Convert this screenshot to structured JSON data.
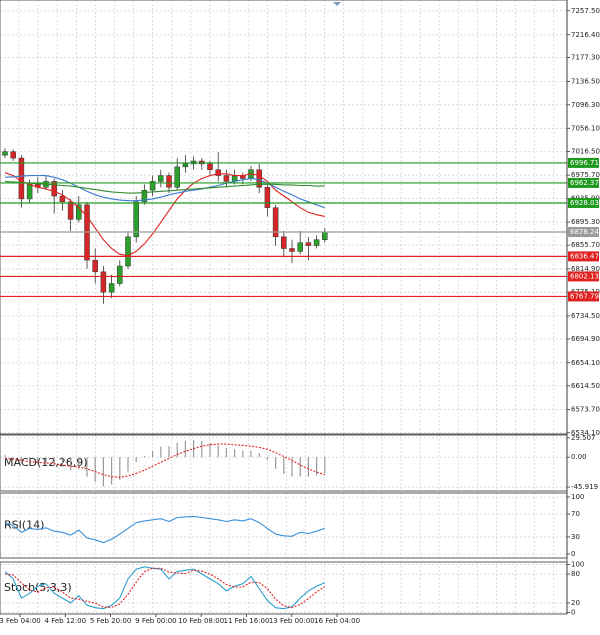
{
  "chart_data": [
    {
      "type": "candlestick",
      "open": [
        7010,
        7016,
        7005,
        6935,
        6960,
        6955,
        6965,
        6940,
        6930,
        6900,
        6925,
        6830,
        6810,
        6775,
        6790,
        6820,
        6870,
        6930,
        6950,
        6965,
        6975,
        6955,
        6990,
        6995,
        7000,
        6995,
        6985,
        6975,
        6965,
        6975,
        6970,
        6985,
        6955,
        6920,
        6870,
        6850,
        6845,
        6860,
        6855,
        6865
      ],
      "high": [
        7022,
        7020,
        7010,
        6968,
        6972,
        6975,
        6970,
        6950,
        6935,
        6940,
        6930,
        6850,
        6820,
        6805,
        6830,
        6880,
        6940,
        6960,
        6975,
        6985,
        6980,
        7005,
        7010,
        7008,
        7005,
        7000,
        7015,
        6985,
        6985,
        6980,
        6992,
        6995,
        6960,
        6925,
        6880,
        6865,
        6880,
        6870,
        6872,
        6885
      ],
      "low": [
        7005,
        7000,
        6920,
        6928,
        6945,
        6950,
        6910,
        6915,
        6880,
        6895,
        6815,
        6790,
        6755,
        6765,
        6785,
        6815,
        6860,
        6925,
        6940,
        6955,
        6945,
        6950,
        6980,
        6985,
        6985,
        6975,
        6965,
        6955,
        6960,
        6960,
        6965,
        6945,
        6905,
        6855,
        6835,
        6825,
        6840,
        6830,
        6850,
        6860
      ],
      "close": [
        7016,
        7005,
        6935,
        6960,
        6955,
        6965,
        6940,
        6930,
        6900,
        6925,
        6830,
        6810,
        6775,
        6790,
        6820,
        6870,
        6930,
        6950,
        6965,
        6975,
        6955,
        6990,
        6995,
        7000,
        6995,
        6985,
        6975,
        6965,
        6975,
        6970,
        6985,
        6955,
        6920,
        6870,
        6850,
        6845,
        6860,
        6855,
        6865,
        6878
      ],
      "up_color": "#2ca02c",
      "down_color": "#d62728",
      "lines": [
        {
          "color": "#e02020",
          "values": [
            6980,
            6975,
            6965,
            6960,
            6955,
            6952,
            6948,
            6942,
            6932,
            6920,
            6905,
            6885,
            6865,
            6850,
            6840,
            6838,
            6845,
            6858,
            6875,
            6895,
            6915,
            6935,
            6950,
            6962,
            6970,
            6975,
            6978,
            6978,
            6975,
            6975,
            6978,
            6975,
            6965,
            6950,
            6940,
            6930,
            6920,
            6912,
            6908,
            6905
          ]
        },
        {
          "color": "#3a7bd5",
          "values": [
            6972,
            6973,
            6974,
            6975,
            6975,
            6975,
            6972,
            6968,
            6962,
            6955,
            6948,
            6942,
            6938,
            6935,
            6933,
            6932,
            6932,
            6933,
            6935,
            6938,
            6942,
            6945,
            6948,
            6950,
            6952,
            6955,
            6958,
            6962,
            6965,
            6968,
            6970,
            6968,
            6962,
            6955,
            6948,
            6942,
            6935,
            6930,
            6925,
            6920
          ]
        },
        {
          "color": "#2e8b2e",
          "values": [
            6965,
            6964,
            6963,
            6962,
            6961,
            6960,
            6959,
            6958,
            6957,
            6955,
            6953,
            6951,
            6949,
            6947,
            6946,
            6945,
            6945,
            6946,
            6947,
            6948,
            6949,
            6950,
            6951,
            6952,
            6953,
            6954,
            6955,
            6956,
            6957,
            6958,
            6959,
            6960,
            6960,
            6960,
            6959,
            6959,
            6958,
            6958,
            6957,
            6957
          ]
        }
      ],
      "levels": [
        {
          "value": 6996.71,
          "color": "#1f9a1f"
        },
        {
          "value": 6962.37,
          "color": "#1f9a1f"
        },
        {
          "value": 6928.03,
          "color": "#1f9a1f"
        },
        {
          "value": 6878.24,
          "color": "#9a9a9a"
        },
        {
          "value": 6836.47,
          "color": "#e02020"
        },
        {
          "value": 6802.13,
          "color": "#e02020"
        },
        {
          "value": 6767.79,
          "color": "#e02020"
        }
      ],
      "ylim": [
        6532,
        7276
      ],
      "yticks": [
        {
          "value": 7257.5,
          "label": "7257.50"
        },
        {
          "value": 7216.4,
          "label": "7216.40"
        },
        {
          "value": 7177.3,
          "label": "7177.30"
        },
        {
          "value": 7136.5,
          "label": "7136.50"
        },
        {
          "value": 7096.3,
          "label": "7096.30"
        },
        {
          "value": 7056.1,
          "label": "7056.10"
        },
        {
          "value": 7016.5,
          "label": "7016.50"
        },
        {
          "value": 6975.7,
          "label": "6975.70"
        },
        {
          "value": 6935.9,
          "label": "6935.90"
        },
        {
          "value": 6895.3,
          "label": "6895.30"
        },
        {
          "value": 6855.7,
          "label": "6855.70"
        },
        {
          "value": 6814.9,
          "label": "6814.90"
        },
        {
          "value": 6775.1,
          "label": "6775.10"
        },
        {
          "value": 6734.5,
          "label": "6734.50"
        },
        {
          "value": 6694.9,
          "label": "6694.90"
        },
        {
          "value": 6654.1,
          "label": "6654.10"
        },
        {
          "value": 6614.5,
          "label": "6614.50"
        },
        {
          "value": 6573.7,
          "label": "6573.70"
        },
        {
          "value": 6534.1,
          "label": "6534.10"
        }
      ],
      "x_axis_labels": [
        "3 Feb 04:00",
        "4 Feb 12:00",
        "5 Feb 20:00",
        "9 Feb 00:00",
        "10 Feb 08:00",
        "11 Feb 16:00",
        "13 Feb 00:00",
        "16 Feb 04:00"
      ]
    },
    {
      "type": "macd",
      "title": "MACD(12,26,9)",
      "histogram": [
        3,
        -2,
        -10,
        -12,
        -10,
        -8,
        -12,
        -15,
        -20,
        -18,
        -30,
        -38,
        -45,
        -42,
        -35,
        -22,
        -8,
        2,
        10,
        16,
        17,
        22,
        25,
        26,
        25,
        22,
        18,
        14,
        12,
        10,
        10,
        6,
        -4,
        -18,
        -26,
        -30,
        -30,
        -30,
        -28,
        -25
      ],
      "signal": [
        -2,
        -3,
        -5,
        -7,
        -8,
        -9,
        -10,
        -12,
        -14,
        -15,
        -18,
        -22,
        -27,
        -30,
        -31,
        -29,
        -25,
        -20,
        -14,
        -8,
        -2,
        4,
        9,
        13,
        17,
        19,
        20,
        20,
        19,
        18,
        17,
        15,
        12,
        7,
        1,
        -5,
        -12,
        -18,
        -23,
        -27
      ],
      "histogram_color": "#999999",
      "signal_color": "#e02020",
      "ylim": [
        -52,
        34
      ],
      "yticks": [
        29.507,
        {
          "value": 0,
          "label": "0.00"
        },
        -45.919
      ]
    },
    {
      "type": "line",
      "title": "RSI(14)",
      "values": [
        55,
        50,
        38,
        45,
        43,
        46,
        40,
        38,
        33,
        42,
        28,
        25,
        20,
        26,
        35,
        45,
        55,
        58,
        60,
        62,
        57,
        64,
        65,
        66,
        64,
        62,
        60,
        57,
        60,
        58,
        62,
        55,
        45,
        35,
        32,
        31,
        38,
        36,
        40,
        45
      ],
      "color": "#3a8fd8",
      "ylim": [
        -7,
        107
      ],
      "yticks": [
        100,
        70,
        30,
        0
      ]
    },
    {
      "type": "stoch",
      "title": "Stoch(5,3,3)",
      "k": [
        85,
        70,
        30,
        40,
        55,
        60,
        40,
        30,
        20,
        35,
        15,
        10,
        8,
        15,
        30,
        70,
        90,
        95,
        92,
        90,
        70,
        85,
        88,
        90,
        80,
        70,
        60,
        45,
        55,
        60,
        75,
        50,
        25,
        10,
        8,
        12,
        30,
        45,
        55,
        62
      ],
      "d": [
        80,
        78,
        62,
        47,
        42,
        52,
        52,
        43,
        30,
        28,
        23,
        20,
        11,
        11,
        18,
        38,
        63,
        85,
        92,
        92,
        84,
        82,
        81,
        88,
        86,
        80,
        70,
        58,
        53,
        53,
        63,
        62,
        50,
        28,
        14,
        10,
        17,
        29,
        43,
        54
      ],
      "k_color": "#2a9fd0",
      "d_color": "#e02020",
      "ylim": [
        -3,
        105
      ],
      "yticks": [
        100,
        80,
        20,
        0
      ]
    }
  ]
}
